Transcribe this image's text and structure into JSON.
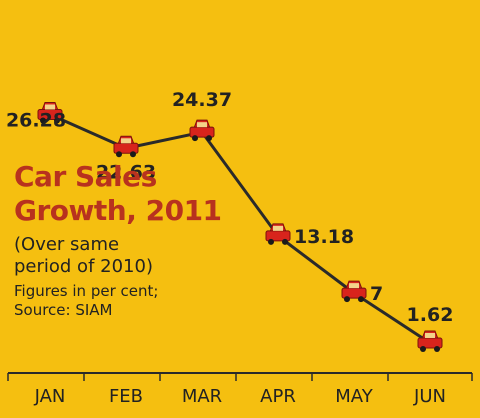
{
  "chart_data": {
    "type": "line",
    "title_lines": [
      "Car Sales",
      "Growth, 2011"
    ],
    "subtitle_lines": [
      "(Over same",
      "period of 2010)"
    ],
    "note_lines": [
      "Figures in per cent;",
      "Source: SIAM"
    ],
    "categories": [
      "JAN",
      "FEB",
      "MAR",
      "APR",
      "MAY",
      "JUN"
    ],
    "values": [
      26.28,
      22.63,
      24.37,
      13.18,
      7,
      1.62
    ],
    "labels": [
      "26.28",
      "22.63",
      "24.37",
      "13.18",
      "7",
      "1.62"
    ],
    "ylim": [
      0,
      30
    ],
    "grid": false,
    "marker": "car-icon"
  },
  "colors": {
    "background": "#f5bf10",
    "line": "#2a2a2a",
    "marker": "#d8241c",
    "title": "#b8321e",
    "text": "#222222"
  }
}
